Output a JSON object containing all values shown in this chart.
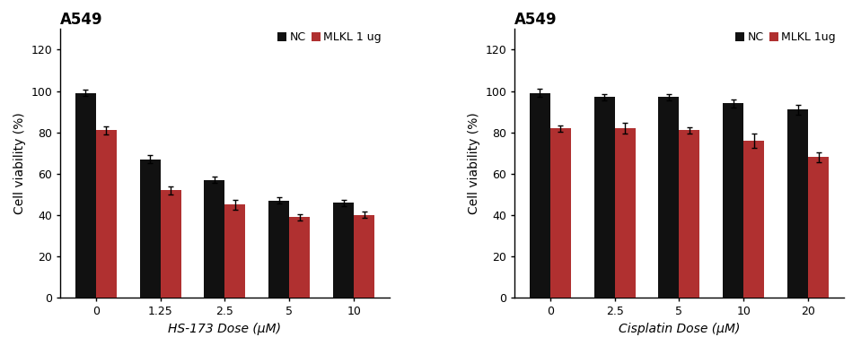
{
  "left": {
    "title": "A549",
    "xlabel": "HS-173 Dose (μM)",
    "ylabel": "Cell viability (%)",
    "categories": [
      "0",
      "1.25",
      "2.5",
      "5",
      "10"
    ],
    "nc_values": [
      99,
      67,
      57,
      47,
      46
    ],
    "nc_errors": [
      1.5,
      2.0,
      1.5,
      1.5,
      1.5
    ],
    "mlkl_values": [
      81,
      52,
      45,
      39,
      40
    ],
    "mlkl_errors": [
      2.0,
      2.0,
      2.5,
      1.5,
      1.5
    ],
    "ylim": [
      0,
      130
    ],
    "yticks": [
      0,
      20,
      40,
      60,
      80,
      100,
      120
    ],
    "legend_label_nc": "NC",
    "legend_label_mlkl": "MLKL 1 ug"
  },
  "right": {
    "title": "A549",
    "xlabel": "Cisplatin Dose (μM)",
    "ylabel": "Cell viability (%)",
    "categories": [
      "0",
      "2.5",
      "5",
      "10",
      "20"
    ],
    "nc_values": [
      99,
      97,
      97,
      94,
      91
    ],
    "nc_errors": [
      2.0,
      1.5,
      1.5,
      2.0,
      2.5
    ],
    "mlkl_values": [
      82,
      82,
      81,
      76,
      68
    ],
    "mlkl_errors": [
      1.5,
      2.5,
      1.5,
      3.5,
      2.5
    ],
    "ylim": [
      0,
      130
    ],
    "yticks": [
      0,
      20,
      40,
      60,
      80,
      100,
      120
    ],
    "legend_label_nc": "NC",
    "legend_label_mlkl": "MLKL 1ug"
  },
  "nc_color": "#111111",
  "mlkl_color": "#b03030",
  "bar_width": 0.32,
  "title_fontsize": 12,
  "label_fontsize": 10,
  "tick_fontsize": 9,
  "legend_fontsize": 9,
  "capsize": 2.5,
  "elinewidth": 1.0,
  "ecapthick": 1.0
}
